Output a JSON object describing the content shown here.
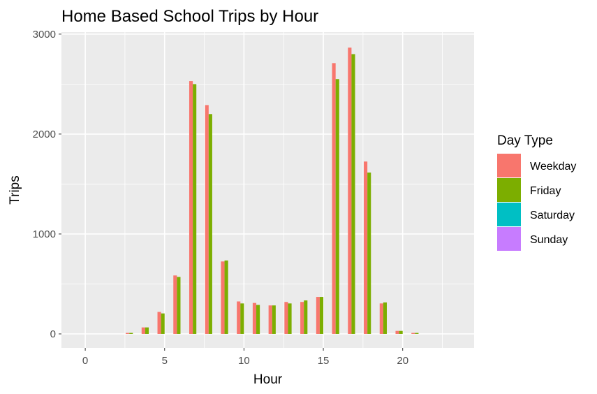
{
  "chart_data": {
    "type": "bar",
    "title": "Home Based School Trips by Hour",
    "xlabel": "Hour",
    "ylabel": "Trips",
    "xlim": [
      -1.5,
      24.5
    ],
    "ylim": [
      -140,
      3020
    ],
    "x_ticks": [
      0,
      5,
      10,
      15,
      20
    ],
    "x_tick_labels": [
      "0",
      "5",
      "10",
      "15",
      "20"
    ],
    "y_ticks": [
      0,
      1000,
      2000,
      3000
    ],
    "y_tick_labels": [
      "0",
      "1000",
      "2000",
      "3000"
    ],
    "grid": true,
    "legend": {
      "title": "Day Type",
      "position": "right",
      "entries": [
        "Weekday",
        "Friday",
        "Saturday",
        "Sunday"
      ]
    },
    "x": [
      0,
      1,
      2,
      3,
      4,
      5,
      6,
      7,
      8,
      9,
      10,
      11,
      12,
      13,
      14,
      15,
      16,
      17,
      18,
      19,
      20,
      21,
      22,
      23
    ],
    "series": [
      {
        "name": "Weekday",
        "color": "#F8766D",
        "values": [
          0,
          0,
          0,
          10,
          65,
          220,
          585,
          2530,
          2290,
          725,
          325,
          310,
          285,
          320,
          320,
          370,
          2710,
          2865,
          1725,
          305,
          30,
          10,
          0,
          0
        ]
      },
      {
        "name": "Friday",
        "color": "#7CAE00",
        "values": [
          0,
          0,
          0,
          10,
          65,
          205,
          570,
          2500,
          2200,
          735,
          305,
          290,
          285,
          305,
          335,
          370,
          2550,
          2800,
          1615,
          315,
          30,
          10,
          0,
          0
        ]
      },
      {
        "name": "Saturday",
        "color": "#00BFC4",
        "values": [
          0,
          0,
          0,
          0,
          0,
          0,
          0,
          0,
          0,
          0,
          0,
          0,
          0,
          0,
          0,
          0,
          0,
          0,
          0,
          0,
          0,
          0,
          0,
          0
        ]
      },
      {
        "name": "Sunday",
        "color": "#C77CFF",
        "values": [
          0,
          0,
          0,
          0,
          0,
          0,
          0,
          0,
          0,
          0,
          0,
          0,
          0,
          0,
          0,
          0,
          0,
          0,
          0,
          0,
          0,
          0,
          0,
          0
        ]
      }
    ],
    "colors": {
      "panel": "#EBEBEB",
      "grid": "#FFFFFF",
      "tick": "#333333"
    }
  }
}
